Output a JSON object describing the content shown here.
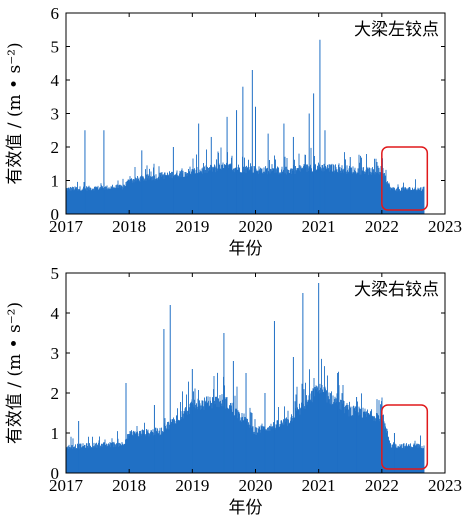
{
  "chart_data": [
    {
      "type": "area",
      "annotation": "大梁左铰点",
      "xlabel": "年份",
      "ylabel": "有效值 / (m • s⁻²)",
      "xlim": [
        2017,
        2023
      ],
      "ylim": [
        0,
        6
      ],
      "xticks": [
        "2017",
        "2018",
        "2019",
        "2020",
        "2021",
        "2022",
        "2023"
      ],
      "yticks": [
        "0",
        "1",
        "2",
        "3",
        "4",
        "5",
        "6"
      ],
      "grid": false,
      "color": "#1f6fc5",
      "highlight_color": "#e0191b",
      "highlight_xrange": [
        2022.0,
        2022.72
      ],
      "data_end_x": 2022.68,
      "envelope": {
        "x": [
          2017.0,
          2017.9,
          2018.0,
          2018.5,
          2019.0,
          2019.5,
          2020.0,
          2020.5,
          2021.0,
          2021.5,
          2022.0,
          2022.15,
          2022.68
        ],
        "y": [
          0.82,
          0.88,
          1.1,
          1.25,
          1.38,
          1.55,
          1.45,
          1.42,
          1.55,
          1.45,
          1.38,
          0.82,
          0.82
        ]
      },
      "spikes": [
        {
          "x": 2017.3,
          "y": 2.5
        },
        {
          "x": 2017.6,
          "y": 2.5
        },
        {
          "x": 2018.2,
          "y": 1.9
        },
        {
          "x": 2018.7,
          "y": 2.0
        },
        {
          "x": 2019.1,
          "y": 2.7
        },
        {
          "x": 2019.3,
          "y": 2.3
        },
        {
          "x": 2019.55,
          "y": 2.9
        },
        {
          "x": 2019.7,
          "y": 3.1
        },
        {
          "x": 2019.8,
          "y": 3.8
        },
        {
          "x": 2019.95,
          "y": 4.3
        },
        {
          "x": 2020.0,
          "y": 3.2
        },
        {
          "x": 2020.2,
          "y": 2.4
        },
        {
          "x": 2020.45,
          "y": 2.7
        },
        {
          "x": 2020.6,
          "y": 2.3
        },
        {
          "x": 2020.85,
          "y": 3.0
        },
        {
          "x": 2020.92,
          "y": 3.6
        },
        {
          "x": 2021.02,
          "y": 5.2
        },
        {
          "x": 2021.1,
          "y": 2.5
        },
        {
          "x": 2021.5,
          "y": 1.7
        }
      ]
    },
    {
      "type": "area",
      "annotation": "大梁右铰点",
      "xlabel": "年份",
      "ylabel": "有效值 / (m • s⁻²)",
      "xlim": [
        2017,
        2023
      ],
      "ylim": [
        0,
        5
      ],
      "xticks": [
        "2017",
        "2018",
        "2019",
        "2020",
        "2021",
        "2022",
        "2023"
      ],
      "yticks": [
        "0",
        "1",
        "2",
        "3",
        "4",
        "5"
      ],
      "grid": false,
      "color": "#1f6fc5",
      "highlight_color": "#e0191b",
      "highlight_xrange": [
        2022.0,
        2022.72
      ],
      "data_end_x": 2022.68,
      "envelope": {
        "x": [
          2017.0,
          2017.9,
          2018.0,
          2018.5,
          2019.0,
          2019.5,
          2020.0,
          2020.5,
          2021.0,
          2021.5,
          2022.0,
          2022.15,
          2022.68
        ],
        "y": [
          0.72,
          0.8,
          1.05,
          1.15,
          1.85,
          2.0,
          1.15,
          1.4,
          2.3,
          1.7,
          1.55,
          0.75,
          0.75
        ]
      },
      "spikes": [
        {
          "x": 2017.2,
          "y": 1.3
        },
        {
          "x": 2017.95,
          "y": 2.25
        },
        {
          "x": 2018.4,
          "y": 1.7
        },
        {
          "x": 2018.55,
          "y": 3.6
        },
        {
          "x": 2018.65,
          "y": 4.2
        },
        {
          "x": 2019.0,
          "y": 2.6
        },
        {
          "x": 2019.5,
          "y": 3.5
        },
        {
          "x": 2019.65,
          "y": 2.8
        },
        {
          "x": 2019.85,
          "y": 2.5
        },
        {
          "x": 2020.15,
          "y": 2.0
        },
        {
          "x": 2020.3,
          "y": 3.8
        },
        {
          "x": 2020.6,
          "y": 2.9
        },
        {
          "x": 2020.75,
          "y": 4.5
        },
        {
          "x": 2021.0,
          "y": 4.75
        },
        {
          "x": 2021.3,
          "y": 2.5
        },
        {
          "x": 2021.6,
          "y": 1.9
        },
        {
          "x": 2022.2,
          "y": 1.0
        }
      ]
    }
  ]
}
